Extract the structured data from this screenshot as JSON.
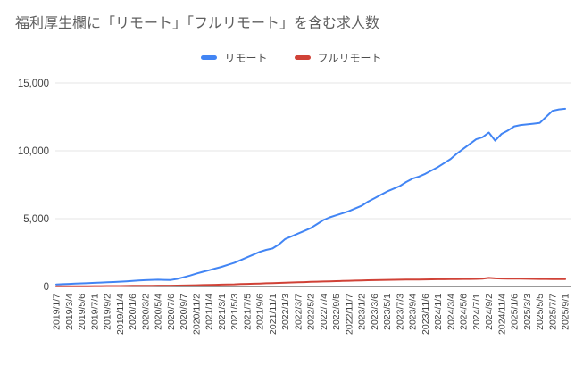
{
  "colors": {
    "background": "#ffffff",
    "grid": "#e6e6e6",
    "axis": "#333333",
    "tick_text": "#424242",
    "title_text": "#5f5f5f"
  },
  "chart_data": {
    "type": "line",
    "title": "福利厚生欄に「リモート」「フルリモート」を含む求人数",
    "legend_position": "top-center",
    "grid": "horizontal",
    "ylim": [
      0,
      15000
    ],
    "y_ticks": [
      {
        "value": 0,
        "label": "0"
      },
      {
        "value": 5000,
        "label": "5,000"
      },
      {
        "value": 10000,
        "label": "10,000"
      },
      {
        "value": 15000,
        "label": "15,000"
      }
    ],
    "x_tick_labels": [
      "2019/1/7",
      "2019/3/4",
      "2019/5/6",
      "2019/7/1",
      "2019/9/2",
      "2019/11/4",
      "2020/1/6",
      "2020/3/2",
      "2020/5/4",
      "2020/7/6",
      "2020/9/7",
      "2020/11/2",
      "2021/1/4",
      "2021/3/1",
      "2021/5/3",
      "2021/7/5",
      "2021/9/6",
      "2021/11/1",
      "2022/1/3",
      "2022/3/7",
      "2022/5/2",
      "2022/7/4",
      "2022/9/5",
      "2022/11/7",
      "2023/1/2",
      "2023/3/6",
      "2023/5/1",
      "2023/7/3",
      "2023/9/4",
      "2023/11/6",
      "2024/1/1",
      "2024/3/4",
      "2024/5/6",
      "2024/7/1",
      "2024/9/2",
      "2024/11/4",
      "2025/1/6",
      "2025/3/3",
      "2025/5/5",
      "2025/7/7",
      "2025/9/1"
    ],
    "x_tick_label_every_n_points": 2,
    "series": [
      {
        "id": "remote",
        "name": "リモート",
        "color": "#4285f4",
        "values": [
          150,
          170,
          190,
          210,
          230,
          250,
          270,
          290,
          310,
          330,
          355,
          380,
          410,
          440,
          470,
          490,
          500,
          490,
          480,
          560,
          680,
          800,
          950,
          1080,
          1200,
          1320,
          1450,
          1600,
          1750,
          1950,
          2150,
          2350,
          2550,
          2700,
          2800,
          3100,
          3500,
          3700,
          3900,
          4100,
          4300,
          4600,
          4900,
          5100,
          5250,
          5400,
          5550,
          5750,
          5950,
          6250,
          6500,
          6750,
          7000,
          7200,
          7400,
          7700,
          7950,
          8100,
          8300,
          8550,
          8800,
          9100,
          9400,
          9800,
          10150,
          10500,
          10850,
          11000,
          11350,
          10750,
          11250,
          11500,
          11800,
          11900,
          11950,
          12000,
          12050,
          12500,
          12950,
          13050,
          13100
        ]
      },
      {
        "id": "full-remote",
        "name": "フルリモート",
        "color": "#d04237",
        "values": [
          10,
          12,
          15,
          18,
          20,
          22,
          25,
          28,
          30,
          32,
          35,
          40,
          45,
          48,
          52,
          55,
          58,
          60,
          62,
          68,
          75,
          85,
          95,
          105,
          115,
          125,
          135,
          150,
          160,
          175,
          190,
          205,
          220,
          235,
          250,
          265,
          280,
          295,
          310,
          325,
          340,
          355,
          370,
          380,
          395,
          410,
          420,
          435,
          450,
          460,
          470,
          480,
          490,
          495,
          500,
          505,
          510,
          515,
          520,
          525,
          530,
          535,
          540,
          545,
          550,
          555,
          560,
          575,
          630,
          600,
          585,
          580,
          575,
          570,
          565,
          560,
          555,
          550,
          548,
          545,
          540
        ]
      }
    ]
  }
}
